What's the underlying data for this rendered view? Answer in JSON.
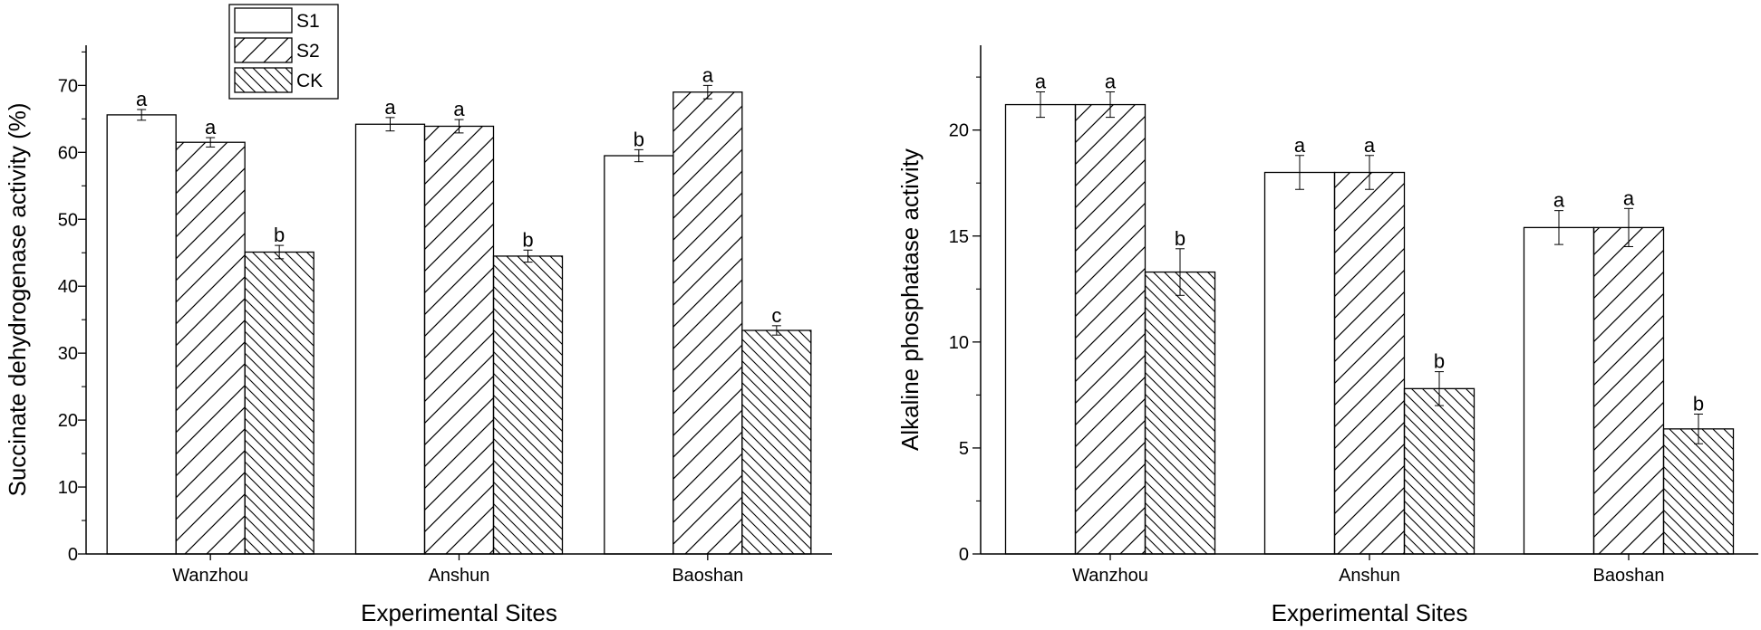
{
  "chart_data": [
    {
      "type": "bar",
      "categories": [
        "Wanzhou",
        "Anshun",
        "Baoshan"
      ],
      "series": [
        {
          "name": "S1",
          "values": [
            65.6,
            64.2,
            59.5
          ],
          "errors": [
            0.8,
            1.0,
            0.9
          ],
          "letters": [
            "a",
            "a",
            "b"
          ]
        },
        {
          "name": "S2",
          "values": [
            61.5,
            63.9,
            69.0
          ],
          "errors": [
            0.7,
            1.0,
            1.0
          ],
          "letters": [
            "a",
            "a",
            "a"
          ]
        },
        {
          "name": "CK",
          "values": [
            45.1,
            44.5,
            33.4
          ],
          "errors": [
            1.0,
            0.9,
            0.7
          ],
          "letters": [
            "b",
            "b",
            "c"
          ]
        }
      ],
      "xlabel": "Experimental Sites",
      "ylabel": "Succinate dehydrogenase activity (%)",
      "ylim": [
        0,
        76
      ],
      "yticks": [
        0,
        10,
        20,
        30,
        40,
        50,
        60,
        70
      ],
      "legend": "top-left",
      "grid": false
    },
    {
      "type": "bar",
      "categories": [
        "Wanzhou",
        "Anshun",
        "Baoshan"
      ],
      "series": [
        {
          "name": "S1",
          "values": [
            21.2,
            18.0,
            15.4
          ],
          "errors": [
            0.6,
            0.8,
            0.8
          ],
          "letters": [
            "a",
            "a",
            "a"
          ]
        },
        {
          "name": "S2",
          "values": [
            21.2,
            18.0,
            15.4
          ],
          "errors": [
            0.6,
            0.8,
            0.9
          ],
          "letters": [
            "a",
            "a",
            "a"
          ]
        },
        {
          "name": "CK",
          "values": [
            13.3,
            7.8,
            5.9
          ],
          "errors": [
            1.1,
            0.8,
            0.7
          ],
          "letters": [
            "b",
            "b",
            "b"
          ]
        }
      ],
      "xlabel": "Experimental Sites",
      "ylabel": "Alkaline phosphatase activity",
      "ylim": [
        0,
        24
      ],
      "yticks": [
        0,
        5,
        10,
        15,
        20
      ],
      "grid": false
    }
  ],
  "colors": {
    "axis": "#000000",
    "bar_fill": "#ffffff",
    "hatch": "#000000"
  },
  "patterns": {
    "S1": "none",
    "S2": "forward-diagonal",
    "CK": "backward-diagonal"
  }
}
